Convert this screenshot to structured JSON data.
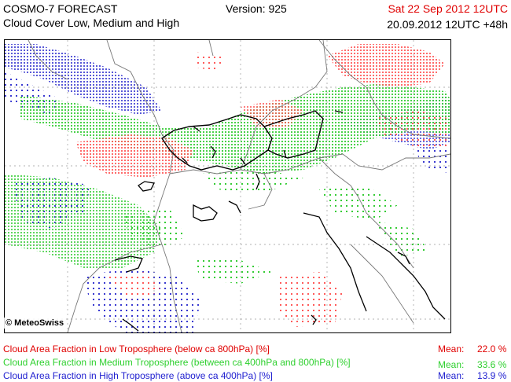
{
  "header": {
    "model": "COSMO-7 FORECAST",
    "product": "Cloud Cover Low, Medium and High",
    "version": "Version: 925",
    "valid_time": "Sat 22 Sep 2012 12UTC",
    "init_time": "20.09.2012 12UTC +48h"
  },
  "map": {
    "copyright": "© MeteoSwiss",
    "colors": {
      "low": "#ff6a6a",
      "medium": "#3ad23a",
      "high": "#3a3ad8"
    }
  },
  "legend": [
    {
      "label": "Cloud Area Fraction in Low Troposphere (below ca 800hPa) [%]",
      "mean_label": "Mean:",
      "mean_value": "22.0 %",
      "color": "#e00000"
    },
    {
      "label": "Cloud Area Fraction in Medium Troposphere (between ca 400hPa and 800hPa) [%]",
      "mean_label": "Mean:",
      "mean_value": "33.6 %",
      "color": "#2fd02f"
    },
    {
      "label": "Cloud Area Fraction in High Troposphere (above ca 400hPa) [%]",
      "mean_label": "Mean:",
      "mean_value": "13.9 %",
      "color": "#2020d0"
    }
  ]
}
